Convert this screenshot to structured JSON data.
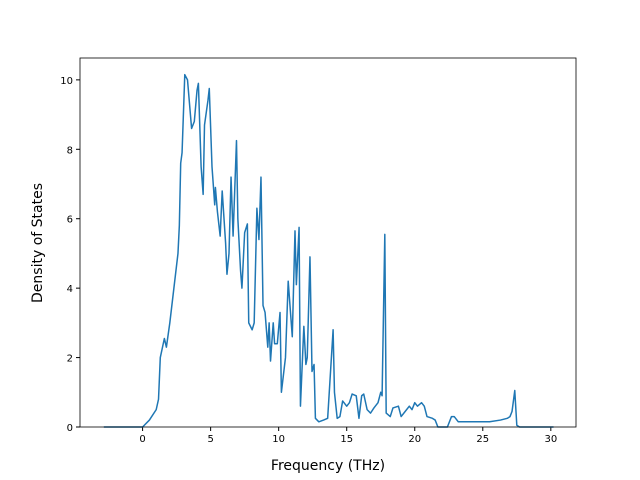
{
  "chart_data": {
    "type": "line",
    "x_label": "Frequency (THz)",
    "y_label": "Density of States",
    "xlim": [
      -4.6,
      31.85
    ],
    "ylim": [
      0,
      10.63
    ],
    "xticks": [
      0,
      5,
      10,
      15,
      20,
      25,
      30
    ],
    "yticks": [
      0,
      2,
      4,
      6,
      8,
      10
    ],
    "series": [
      {
        "color": "#1f77b4",
        "x": [
          -2.85,
          0,
          0.5,
          1,
          1.17,
          1.3,
          1.6,
          1.75,
          2.0,
          2.3,
          2.6,
          2.7,
          2.8,
          2.9,
          3.1,
          3.3,
          3.6,
          3.8,
          4.0,
          4.1,
          4.3,
          4.45,
          4.55,
          4.8,
          4.9,
          5.1,
          5.3,
          5.35,
          5.5,
          5.7,
          5.85,
          6.1,
          6.2,
          6.35,
          6.5,
          6.65,
          6.9,
          7.0,
          7.2,
          7.3,
          7.5,
          7.7,
          7.8,
          8.05,
          8.2,
          8.4,
          8.55,
          8.7,
          8.85,
          9.0,
          9.2,
          9.3,
          9.4,
          9.6,
          9.7,
          9.9,
          10.1,
          10.2,
          10.5,
          10.7,
          11.0,
          11.2,
          11.3,
          11.5,
          11.6,
          11.85,
          12.0,
          12.1,
          12.3,
          12.45,
          12.6,
          12.7,
          12.95,
          13.3,
          13.6,
          14.0,
          14.1,
          14.3,
          14.5,
          14.7,
          15.0,
          15.2,
          15.4,
          15.7,
          15.9,
          16.1,
          16.25,
          16.5,
          16.75,
          17.0,
          17.3,
          17.5,
          17.6,
          17.8,
          17.9,
          18.2,
          18.4,
          18.8,
          19.0,
          19.3,
          19.6,
          19.8,
          20.0,
          20.2,
          20.5,
          20.7,
          20.9,
          21.3,
          21.5,
          21.7,
          22.4,
          22.7,
          22.9,
          23.2,
          24.1,
          25.5,
          26.3,
          26.8,
          27.0,
          27.15,
          27.35,
          27.5,
          27.7,
          30.0,
          30.2
        ],
        "values": [
          0,
          0,
          0.2,
          0.5,
          0.8,
          2.0,
          2.55,
          2.3,
          3.0,
          4.0,
          5.0,
          5.8,
          7.6,
          7.9,
          10.15,
          10.0,
          8.6,
          8.8,
          9.7,
          9.9,
          7.5,
          6.7,
          8.7,
          9.4,
          9.75,
          7.5,
          6.4,
          6.9,
          6.2,
          5.5,
          6.8,
          5.3,
          4.4,
          5.0,
          7.2,
          5.5,
          8.25,
          6.0,
          4.5,
          4.0,
          5.6,
          5.85,
          3.0,
          2.8,
          3.0,
          6.3,
          5.4,
          7.2,
          3.5,
          3.3,
          2.3,
          3.0,
          1.9,
          3.0,
          2.4,
          2.4,
          3.3,
          1.0,
          2.0,
          4.2,
          2.6,
          5.65,
          4.1,
          5.75,
          0.6,
          2.9,
          1.8,
          2.0,
          4.9,
          1.6,
          1.8,
          0.25,
          0.15,
          0.2,
          0.25,
          2.8,
          1.0,
          0.25,
          0.3,
          0.75,
          0.6,
          0.7,
          0.95,
          0.9,
          0.25,
          0.9,
          0.95,
          0.5,
          0.4,
          0.55,
          0.7,
          1.0,
          0.9,
          5.55,
          0.4,
          0.3,
          0.55,
          0.6,
          0.3,
          0.45,
          0.6,
          0.5,
          0.7,
          0.6,
          0.7,
          0.6,
          0.3,
          0.25,
          0.2,
          0,
          0,
          0.3,
          0.3,
          0.15,
          0.15,
          0.15,
          0.2,
          0.25,
          0.3,
          0.45,
          1.05,
          0.05,
          0,
          0,
          0
        ]
      }
    ]
  }
}
